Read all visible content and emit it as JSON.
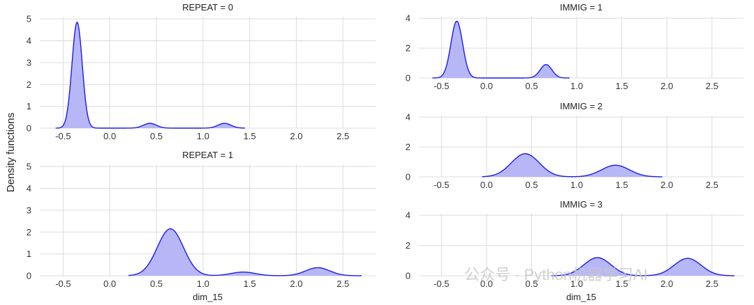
{
  "figure": {
    "ylabel": "Density functions",
    "watermark": "公众号 · Python机器学习AI"
  },
  "colors": {
    "line": "#1a1aee",
    "fill": "#b3b3f7",
    "grid": "#dcdcdc",
    "background": "#ffffff"
  },
  "chart_data": [
    {
      "type": "area",
      "title": "REPEAT = 0",
      "xlabel": "",
      "xlim": [
        -0.75,
        2.85
      ],
      "ylim": [
        0,
        5.1
      ],
      "xticks": [
        -0.5,
        0.0,
        0.5,
        1.0,
        1.5,
        2.0,
        2.5
      ],
      "xtick_labels": [
        "-0.5",
        "0.0",
        "0.5",
        "1.0",
        "1.5",
        "2.0",
        "2.5"
      ],
      "yticks": [
        0,
        1,
        2,
        3,
        4,
        5
      ],
      "ytick_labels": [
        "0",
        "1",
        "2",
        "3",
        "4",
        "5"
      ],
      "x_range": [
        -0.58,
        1.45
      ],
      "components": [
        {
          "center": -0.35,
          "height": 4.85,
          "sd": 0.055
        },
        {
          "center": 0.43,
          "height": 0.22,
          "sd": 0.07
        },
        {
          "center": 1.23,
          "height": 0.22,
          "sd": 0.07
        }
      ]
    },
    {
      "type": "area",
      "title": "REPEAT = 1",
      "xlabel": "dim_15",
      "xlim": [
        -0.75,
        2.85
      ],
      "ylim": [
        0,
        5.1
      ],
      "xticks": [
        -0.5,
        0.0,
        0.5,
        1.0,
        1.5,
        2.0,
        2.5
      ],
      "xtick_labels": [
        "-0.5",
        "0.0",
        "0.5",
        "1.0",
        "1.5",
        "2.0",
        "2.5"
      ],
      "yticks": [
        0,
        1,
        2,
        3,
        4,
        5
      ],
      "ytick_labels": [
        "0",
        "1",
        "2",
        "3",
        "4",
        "5"
      ],
      "x_range": [
        0.2,
        2.7
      ],
      "components": [
        {
          "center": 0.65,
          "height": 2.15,
          "sd": 0.14
        },
        {
          "center": 1.43,
          "height": 0.17,
          "sd": 0.13
        },
        {
          "center": 2.23,
          "height": 0.37,
          "sd": 0.13
        }
      ]
    },
    {
      "type": "area",
      "title": "IMMIG = 1",
      "xlabel": "",
      "xlim": [
        -0.75,
        2.85
      ],
      "ylim": [
        0,
        4.1
      ],
      "xticks": [
        -0.5,
        0.0,
        0.5,
        1.0,
        1.5,
        2.0,
        2.5
      ],
      "xtick_labels": [
        "-0.5",
        "0.0",
        "0.5",
        "1.0",
        "1.5",
        "2.0",
        "2.5"
      ],
      "yticks": [
        0,
        2,
        4
      ],
      "ytick_labels": [
        "0",
        "2",
        "4"
      ],
      "x_range": [
        -0.6,
        0.92
      ],
      "components": [
        {
          "center": -0.33,
          "height": 3.8,
          "sd": 0.065
        },
        {
          "center": 0.66,
          "height": 0.9,
          "sd": 0.065
        }
      ]
    },
    {
      "type": "area",
      "title": "IMMIG = 2",
      "xlabel": "",
      "xlim": [
        -0.75,
        2.85
      ],
      "ylim": [
        0,
        4.1
      ],
      "xticks": [
        -0.5,
        0.0,
        0.5,
        1.0,
        1.5,
        2.0,
        2.5
      ],
      "xtick_labels": [
        "-0.5",
        "0.0",
        "0.5",
        "1.0",
        "1.5",
        "2.0",
        "2.5"
      ],
      "yticks": [
        0,
        2,
        4
      ],
      "ytick_labels": [
        "0",
        "2",
        "4"
      ],
      "x_range": [
        -0.05,
        1.95
      ],
      "components": [
        {
          "center": 0.43,
          "height": 1.55,
          "sd": 0.155
        },
        {
          "center": 1.43,
          "height": 0.78,
          "sd": 0.155
        }
      ]
    },
    {
      "type": "area",
      "title": "IMMIG = 3",
      "xlabel": "dim_15",
      "xlim": [
        -0.75,
        2.85
      ],
      "ylim": [
        0,
        4.1
      ],
      "xticks": [
        -0.5,
        0.0,
        0.5,
        1.0,
        1.5,
        2.0,
        2.5
      ],
      "xtick_labels": [
        "-0.5",
        "0.0",
        "0.5",
        "1.0",
        "1.5",
        "2.0",
        "2.5"
      ],
      "yticks": [
        0,
        2,
        4
      ],
      "ytick_labels": [
        "0",
        "2",
        "4"
      ],
      "x_range": [
        0.72,
        2.75
      ],
      "components": [
        {
          "center": 1.23,
          "height": 1.2,
          "sd": 0.15
        },
        {
          "center": 2.23,
          "height": 1.15,
          "sd": 0.15
        }
      ]
    }
  ]
}
